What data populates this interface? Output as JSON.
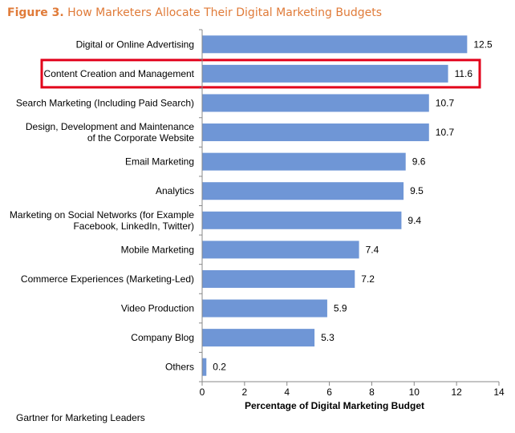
{
  "figure": {
    "number_label": "Figure 3.",
    "title": "How Marketers Allocate Their Digital Marketing Budgets"
  },
  "source": "Gartner for Marketing Leaders",
  "highlight_color": "#e2001a",
  "bar_color": "#6f96d6",
  "chart_data": {
    "type": "bar",
    "orientation": "horizontal",
    "title": "How Marketers Allocate Their Digital Marketing Budgets",
    "xlabel": "Percentage of Digital Marketing Budget",
    "ylabel": "",
    "xlim": [
      0,
      14
    ],
    "xticks": [
      "0",
      "2",
      "4",
      "6",
      "8",
      "10",
      "12",
      "14"
    ],
    "grid": false,
    "highlighted_category": "Content Creation and Management",
    "categories": [
      [
        "Digital or Online Advertising"
      ],
      [
        "Content Creation and Management"
      ],
      [
        "Search Marketing (Including Paid Search)"
      ],
      [
        "Design, Development and Maintenance",
        "of the Corporate Website"
      ],
      [
        "Email Marketing"
      ],
      [
        "Analytics"
      ],
      [
        "Marketing on Social Networks (for Example",
        "Facebook, LinkedIn, Twitter)"
      ],
      [
        "Mobile Marketing"
      ],
      [
        "Commerce Experiences (Marketing-Led)"
      ],
      [
        "Video Production"
      ],
      [
        "Company Blog"
      ],
      [
        "Others"
      ]
    ],
    "values": [
      12.5,
      11.6,
      10.7,
      10.7,
      9.6,
      9.5,
      9.4,
      7.4,
      7.2,
      5.9,
      5.3,
      0.2
    ],
    "value_labels": [
      "12.5",
      "11.6",
      "10.7",
      "10.7",
      "9.6",
      "9.5",
      "9.4",
      "7.4",
      "7.2",
      "5.9",
      "5.3",
      "0.2"
    ]
  }
}
